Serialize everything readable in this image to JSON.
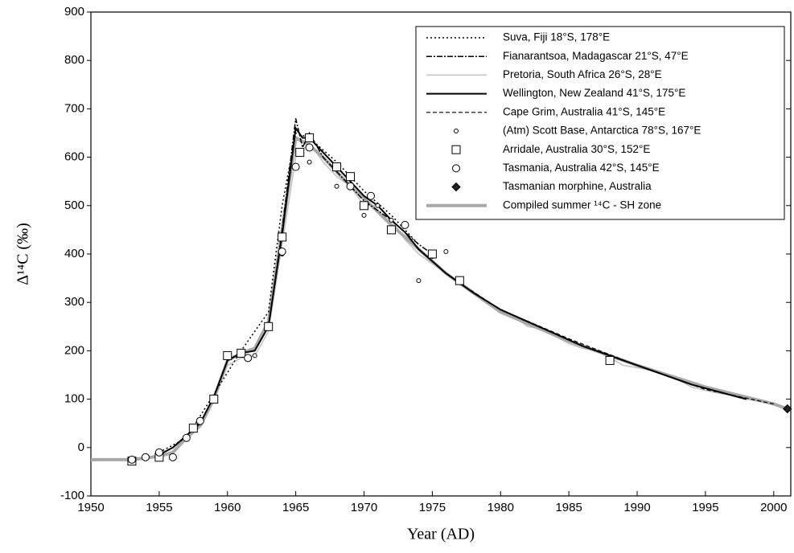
{
  "chart_data": {
    "type": "line",
    "xlabel": "Year (AD)",
    "ylabel": "Δ¹⁴C (‰)",
    "xlim": [
      1950,
      2001.25
    ],
    "ylim": [
      -100,
      900
    ],
    "xticks": [
      1950,
      1955,
      1960,
      1965,
      1970,
      1975,
      1980,
      1985,
      1990,
      1995,
      2000
    ],
    "yticks": [
      -100,
      0,
      100,
      200,
      300,
      400,
      500,
      600,
      700,
      800,
      900
    ],
    "legend": "upper right",
    "series": [
      {
        "name": "Suva, Fiji 18°S, 178°E",
        "color": "#000000",
        "style": "dotted",
        "width": 1.5,
        "x": [
          1955,
          1957,
          1959,
          1961,
          1963,
          1964,
          1965,
          1966,
          1968,
          1970,
          1972,
          1974
        ],
        "values": [
          -10,
          20,
          110,
          200,
          280,
          500,
          650,
          640,
          590,
          530,
          480,
          420
        ]
      },
      {
        "name": "Fianarantsoa, Madagascar 21°S, 47°E",
        "color": "#000000",
        "style": "dashdot",
        "width": 1.5,
        "x": [
          1963,
          1964,
          1965,
          1965.5,
          1966,
          1967,
          1968,
          1970,
          1972,
          1974,
          1975
        ],
        "values": [
          250,
          450,
          680,
          620,
          650,
          600,
          570,
          510,
          470,
          420,
          400
        ]
      },
      {
        "name": "Pretoria, South Africa 26°S, 28°E",
        "color": "#c0c0c0",
        "style": "solid",
        "width": 1.5,
        "x": [
          1950,
          1952,
          1954,
          1955,
          1956,
          1957,
          1958,
          1959,
          1960,
          1961,
          1962,
          1963,
          1964,
          1965,
          1966,
          1967,
          1968,
          1969,
          1970,
          1971,
          1972,
          1973,
          1974,
          1975,
          1976,
          1977,
          1978,
          1979,
          1980,
          1981,
          1982,
          1983,
          1984,
          1985,
          1986,
          1987,
          1988,
          1989,
          1990,
          1991,
          1992,
          1993,
          1994,
          1995,
          1996,
          1997,
          1998,
          1999,
          2000
        ],
        "values": [
          -25,
          -25,
          -20,
          -15,
          0,
          20,
          50,
          95,
          170,
          185,
          190,
          240,
          420,
          600,
          630,
          590,
          560,
          540,
          500,
          500,
          470,
          430,
          400,
          380,
          360,
          340,
          320,
          300,
          280,
          270,
          250,
          245,
          230,
          215,
          205,
          200,
          185,
          170,
          165,
          160,
          150,
          140,
          125,
          118,
          112,
          108,
          100,
          95,
          88
        ]
      },
      {
        "name": "Wellington, New Zealand 41°S, 175°E",
        "color": "#000000",
        "style": "solid",
        "width": 2,
        "x": [
          1955,
          1956,
          1957,
          1958,
          1959,
          1960,
          1961,
          1962,
          1963,
          1964,
          1965,
          1965.5,
          1966,
          1967,
          1968,
          1969,
          1970,
          1971,
          1972,
          1973,
          1974,
          1975,
          1976,
          1977,
          1978,
          1980,
          1982,
          1984,
          1986,
          1988,
          1990,
          1992,
          1994,
          1996,
          1998
        ],
        "values": [
          -15,
          0,
          25,
          50,
          105,
          180,
          195,
          200,
          250,
          440,
          660,
          640,
          640,
          610,
          580,
          550,
          520,
          500,
          470,
          445,
          410,
          385,
          360,
          340,
          320,
          285,
          260,
          235,
          210,
          190,
          170,
          150,
          130,
          115,
          100
        ]
      },
      {
        "name": "Cape Grim, Australia 41°S, 145°E",
        "color": "#000000",
        "style": "dashed",
        "width": 1.2,
        "x": [
          1977,
          1980,
          1985,
          1990,
          1995,
          2000
        ],
        "values": [
          340,
          285,
          225,
          170,
          120,
          90
        ]
      },
      {
        "name": "(Atm) Scott Base, Antarctica 78°S, 167°E",
        "color": "#000000",
        "marker": "small-circle",
        "x": [
          1958,
          1962,
          1964,
          1966,
          1968,
          1969,
          1970,
          1971,
          1972,
          1974,
          1975,
          1976
        ],
        "values": [
          55,
          190,
          400,
          590,
          540,
          560,
          480,
          500,
          470,
          345,
          395,
          405
        ]
      },
      {
        "name": "Arridale, Australia 30°S, 152°E",
        "color": "#000000",
        "marker": "square",
        "x": [
          1953,
          1955,
          1957.5,
          1959,
          1960,
          1961,
          1963,
          1964,
          1965.3,
          1966,
          1968,
          1969,
          1970,
          1972,
          1975,
          1977,
          1988
        ],
        "values": [
          -28,
          -20,
          40,
          100,
          190,
          195,
          250,
          435,
          610,
          640,
          580,
          560,
          500,
          450,
          400,
          345,
          180
        ]
      },
      {
        "name": "Tasmania, Australia 42°S, 145°E",
        "color": "#000000",
        "marker": "circle",
        "x": [
          1953,
          1954,
          1955,
          1956,
          1957,
          1958,
          1961.5,
          1964,
          1965,
          1966,
          1969,
          1970.5,
          1973
        ],
        "values": [
          -25,
          -20,
          -10,
          -20,
          20,
          55,
          185,
          405,
          580,
          620,
          540,
          520,
          460
        ]
      },
      {
        "name": "Tasmanian morphine, Australia",
        "color": "#000000",
        "marker": "diamond",
        "x": [
          2001
        ],
        "values": [
          80
        ]
      },
      {
        "name": "Compiled summer ¹⁴C - SH zone",
        "color": "#a8a8a8",
        "style": "solid",
        "width": 4,
        "x": [
          1950,
          1953,
          1955,
          1956,
          1957,
          1958,
          1959,
          1960,
          1961,
          1962,
          1963,
          1964,
          1965,
          1966,
          1967,
          1968,
          1969,
          1970,
          1972,
          1974,
          1976,
          1978,
          1980,
          1985,
          1990,
          1995,
          2000,
          2001
        ],
        "values": [
          -25,
          -25,
          -18,
          -10,
          20,
          45,
          100,
          180,
          195,
          205,
          260,
          450,
          640,
          625,
          600,
          570,
          540,
          515,
          460,
          410,
          360,
          320,
          280,
          220,
          170,
          125,
          90,
          80
        ]
      }
    ]
  }
}
